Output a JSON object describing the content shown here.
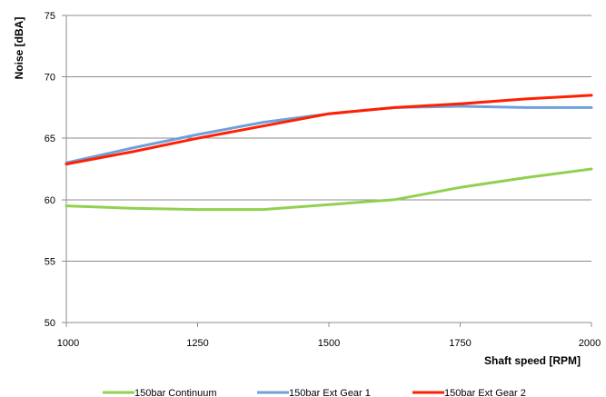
{
  "chart_data": {
    "type": "line",
    "title": "",
    "xlabel": "Shaft speed [RPM]",
    "ylabel": "Noise [dBA]",
    "xlim": [
      1000,
      2000
    ],
    "ylim": [
      50,
      75
    ],
    "xticks": [
      1000,
      1250,
      1500,
      1750,
      2000
    ],
    "yticks": [
      50,
      55,
      60,
      65,
      70,
      75
    ],
    "x_tick_labels": [
      "1000",
      "1250",
      "1500",
      "1750",
      "2000"
    ],
    "y_tick_labels": [
      "50",
      "55",
      "60",
      "65",
      "70",
      "75"
    ],
    "grid": "horizontal",
    "legend_position": "bottom",
    "series": [
      {
        "name": "150bar Continuum",
        "color": "#92d050",
        "points": [
          {
            "x": 1000,
            "y": 59.5
          },
          {
            "x": 1125,
            "y": 59.3
          },
          {
            "x": 1250,
            "y": 59.2
          },
          {
            "x": 1375,
            "y": 59.2
          },
          {
            "x": 1500,
            "y": 59.6
          },
          {
            "x": 1625,
            "y": 60.0
          },
          {
            "x": 1750,
            "y": 61.0
          },
          {
            "x": 1875,
            "y": 61.8
          },
          {
            "x": 2000,
            "y": 62.5
          }
        ]
      },
      {
        "name": "150bar Ext Gear 1",
        "color": "#6fa0dc",
        "points": [
          {
            "x": 1000,
            "y": 63.0
          },
          {
            "x": 1125,
            "y": 64.2
          },
          {
            "x": 1250,
            "y": 65.3
          },
          {
            "x": 1375,
            "y": 66.3
          },
          {
            "x": 1500,
            "y": 67.0
          },
          {
            "x": 1625,
            "y": 67.5
          },
          {
            "x": 1750,
            "y": 67.6
          },
          {
            "x": 1875,
            "y": 67.5
          },
          {
            "x": 2000,
            "y": 67.5
          }
        ]
      },
      {
        "name": "150bar Ext Gear 2",
        "color": "#ff2000",
        "points": [
          {
            "x": 1000,
            "y": 62.9
          },
          {
            "x": 1125,
            "y": 63.9
          },
          {
            "x": 1250,
            "y": 65.0
          },
          {
            "x": 1375,
            "y": 66.0
          },
          {
            "x": 1500,
            "y": 67.0
          },
          {
            "x": 1625,
            "y": 67.5
          },
          {
            "x": 1750,
            "y": 67.8
          },
          {
            "x": 1875,
            "y": 68.2
          },
          {
            "x": 2000,
            "y": 68.5
          }
        ]
      }
    ]
  }
}
